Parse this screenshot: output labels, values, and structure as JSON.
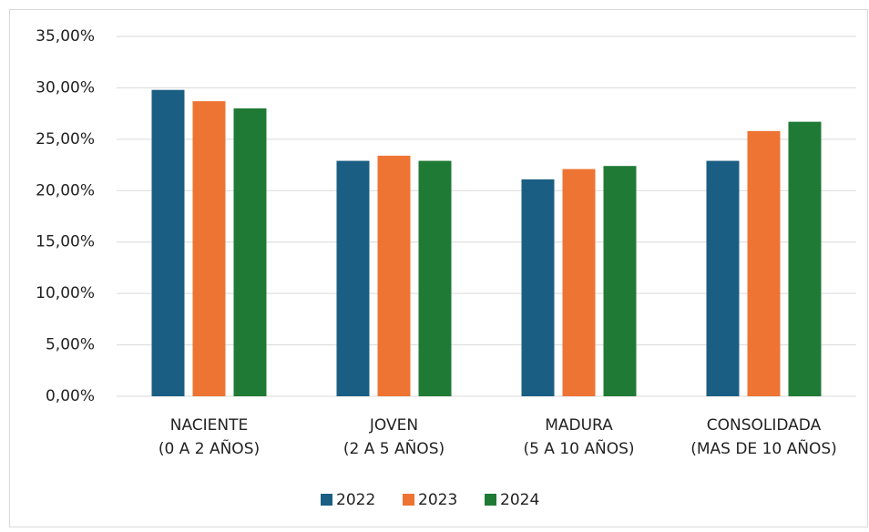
{
  "chart_data": {
    "type": "bar",
    "categories": [
      [
        "NACIENTE",
        "(0 A 2 AÑOS)"
      ],
      [
        "JOVEN",
        "(2 A 5 AÑOS)"
      ],
      [
        "MADURA",
        "(5 A 10 AÑOS)"
      ],
      [
        "CONSOLIDADA",
        "(MAS DE 10 AÑOS)"
      ]
    ],
    "series": [
      {
        "name": "2022",
        "color": "#1b5e83",
        "values": [
          29.8,
          22.9,
          21.1,
          22.9
        ]
      },
      {
        "name": "2023",
        "color": "#ed7433",
        "values": [
          28.7,
          23.4,
          22.1,
          25.8
        ]
      },
      {
        "name": "2024",
        "color": "#1f7a35",
        "values": [
          28.0,
          22.9,
          22.4,
          26.7
        ]
      }
    ],
    "ylim": [
      0,
      35
    ],
    "yticks": [
      {
        "value": 0,
        "label": "0,00%"
      },
      {
        "value": 5,
        "label": "5,00%"
      },
      {
        "value": 10,
        "label": "10,00%"
      },
      {
        "value": 15,
        "label": "15,00%"
      },
      {
        "value": 20,
        "label": "20,00%"
      },
      {
        "value": 25,
        "label": "25,00%"
      },
      {
        "value": 30,
        "label": "30,00%"
      },
      {
        "value": 35,
        "label": "35,00%"
      }
    ],
    "grid": true,
    "legend": "bottom"
  }
}
